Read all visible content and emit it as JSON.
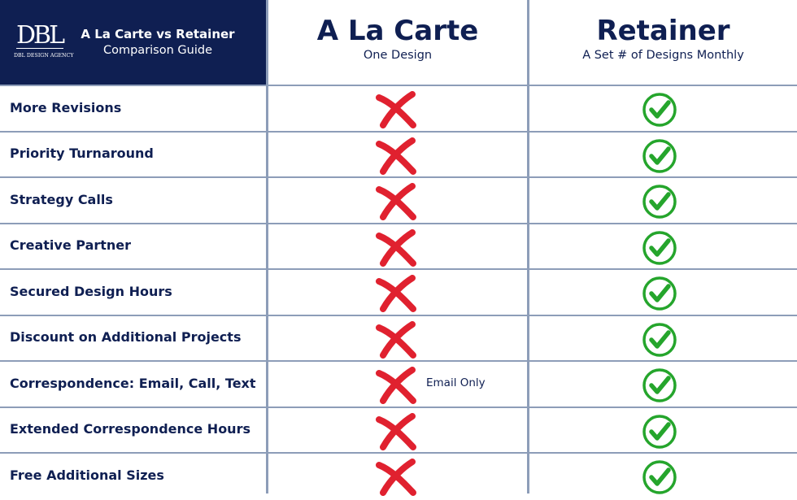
{
  "brand": {
    "logo_mark": "DBL",
    "logo_text": "DBL DESIGN AGENCY",
    "title": "A La Carte vs Retainer",
    "subtitle": "Comparison Guide"
  },
  "columns": [
    {
      "title": "A La Carte",
      "subtitle": "One Design",
      "mark": "red-x",
      "color": "#e0212f"
    },
    {
      "title": "Retainer",
      "subtitle": "A Set # of Designs Monthly",
      "mark": "green-check",
      "color": "#25a52c"
    }
  ],
  "rows": [
    {
      "feature": "More Revisions",
      "a_la_carte": "x",
      "retainer": "check",
      "note": ""
    },
    {
      "feature": "Priority Turnaround",
      "a_la_carte": "x",
      "retainer": "check",
      "note": ""
    },
    {
      "feature": "Strategy Calls",
      "a_la_carte": "x",
      "retainer": "check",
      "note": ""
    },
    {
      "feature": "Creative Partner",
      "a_la_carte": "x",
      "retainer": "check",
      "note": ""
    },
    {
      "feature": "Secured Design Hours",
      "a_la_carte": "x",
      "retainer": "check",
      "note": ""
    },
    {
      "feature": "Discount on Additional Projects",
      "a_la_carte": "x",
      "retainer": "check",
      "note": ""
    },
    {
      "feature": "Correspondence: Email, Call, Text",
      "a_la_carte": "x",
      "retainer": "check",
      "note": "Email Only"
    },
    {
      "feature": "Extended Correspondence Hours",
      "a_la_carte": "x",
      "retainer": "check",
      "note": ""
    },
    {
      "feature": "Free Additional Sizes",
      "a_la_carte": "x",
      "retainer": "check",
      "note": ""
    }
  ],
  "colors": {
    "navy": "#0f1f52",
    "divider": "#8d9db8",
    "x_red": "#e0212f",
    "check_green": "#25a52c"
  }
}
